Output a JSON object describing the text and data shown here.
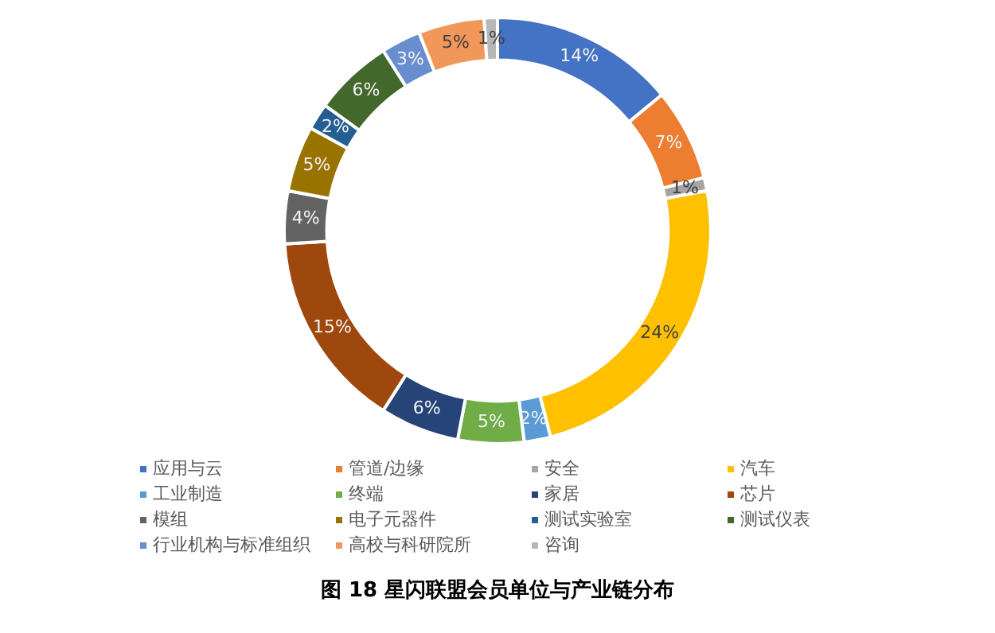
{
  "chart_data": {
    "type": "donut",
    "title": "图 18 星闪联盟会员单位与产业链分布",
    "categories": [
      "应用与云",
      "管道/边缘",
      "安全",
      "汽车",
      "工业制造",
      "终端",
      "家居",
      "芯片",
      "模组",
      "电子元器件",
      "测试实验室",
      "测试仪表",
      "行业机构与标准组织",
      "高校与科研院所",
      "咨询"
    ],
    "values": [
      14,
      7,
      1,
      24,
      2,
      5,
      6,
      15,
      4,
      5,
      2,
      6,
      3,
      5,
      1
    ],
    "colors": [
      "#4472c4",
      "#ed7d31",
      "#a5a5a5",
      "#ffc000",
      "#5b9bd5",
      "#70ad47",
      "#264478",
      "#9e480e",
      "#636363",
      "#997300",
      "#255e91",
      "#43682b",
      "#698ed0",
      "#f1975a",
      "#b7b7b7"
    ],
    "value_labels": [
      "14%",
      "7%",
      "1%",
      "24%",
      "2%",
      "5%",
      "6%",
      "15%",
      "4%",
      "5%",
      "2%",
      "6%",
      "3%",
      "5%",
      "1%"
    ],
    "legend": "bottom"
  }
}
